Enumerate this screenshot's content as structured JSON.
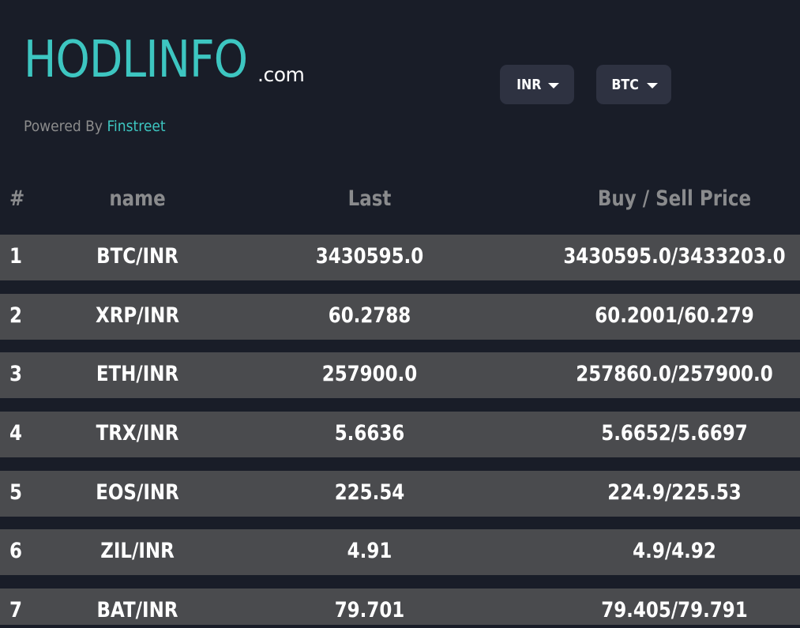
{
  "header": {
    "logo_main": "HODLINFO",
    "logo_suffix": ".com",
    "powered_prefix": "Powered By",
    "powered_brand": "Finstreet"
  },
  "controls": {
    "currency_selected": "INR",
    "crypto_selected": "BTC"
  },
  "table": {
    "columns": [
      "#",
      "name",
      "Last",
      "Buy / Sell Price"
    ],
    "rows": [
      {
        "index": "1",
        "name": "BTC/INR",
        "last": "3430595.0",
        "buy_sell": "3430595.0/3433203.0"
      },
      {
        "index": "2",
        "name": "XRP/INR",
        "last": "60.2788",
        "buy_sell": "60.2001/60.279"
      },
      {
        "index": "3",
        "name": "ETH/INR",
        "last": "257900.0",
        "buy_sell": "257860.0/257900.0"
      },
      {
        "index": "4",
        "name": "TRX/INR",
        "last": "5.6636",
        "buy_sell": "5.6652/5.6697"
      },
      {
        "index": "5",
        "name": "EOS/INR",
        "last": "225.54",
        "buy_sell": "224.9/225.53"
      },
      {
        "index": "6",
        "name": "ZIL/INR",
        "last": "4.91",
        "buy_sell": "4.9/4.92"
      },
      {
        "index": "7",
        "name": "BAT/INR",
        "last": "79.701",
        "buy_sell": "79.405/79.791"
      }
    ]
  },
  "colors": {
    "background": "#191d28",
    "accent": "#3dc6c1",
    "row_background": "#4a4b4e",
    "header_text": "#8a8b8d",
    "dropdown_background": "#2e3241"
  }
}
